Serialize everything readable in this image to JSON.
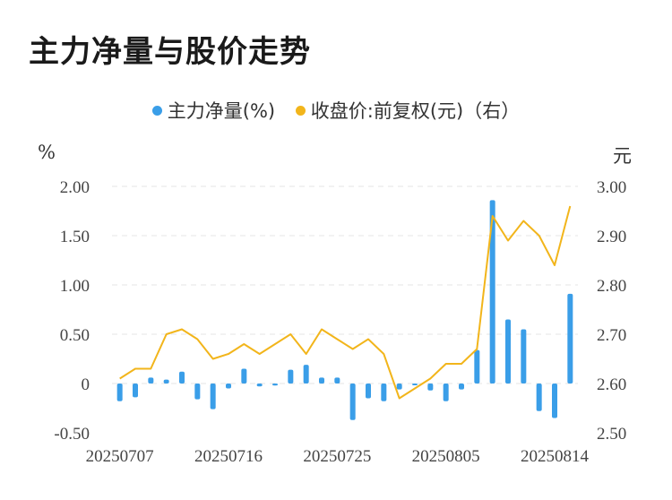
{
  "title": "主力净量与股价走势",
  "legend": {
    "main_net": "主力净量(%)",
    "close_price": "收盘价:前复权(元)（右）"
  },
  "colors": {
    "main_net": "#3a9ee8",
    "close_price": "#f2b51b",
    "grid": "#e4e4e4"
  },
  "chart_data": {
    "type": "bar+line",
    "left_unit": "%",
    "right_unit": "元",
    "left_ticks": [
      "2.00",
      "1.50",
      "1.00",
      "0.50",
      "0",
      "-0.50"
    ],
    "right_ticks": [
      "3.00",
      "2.90",
      "2.80",
      "2.70",
      "2.60",
      "2.50"
    ],
    "left_range": [
      -0.5,
      2.0
    ],
    "right_range": [
      2.5,
      3.0
    ],
    "x_ticks": [
      "20250707",
      "20250716",
      "20250725",
      "20250805",
      "20250814"
    ],
    "x_tick_index": [
      0,
      7,
      14,
      21,
      28
    ],
    "bar_values": [
      -0.18,
      -0.14,
      0.06,
      0.04,
      0.12,
      -0.16,
      -0.26,
      -0.05,
      0.15,
      -0.03,
      -0.02,
      0.14,
      0.19,
      0.06,
      0.06,
      -0.37,
      -0.15,
      -0.18,
      -0.06,
      -0.01,
      -0.07,
      -0.18,
      -0.06,
      0.34,
      1.86,
      0.65,
      0.55,
      -0.28,
      -0.35,
      0.91
    ],
    "line_values": [
      2.61,
      2.63,
      2.63,
      2.7,
      2.71,
      2.69,
      2.65,
      2.66,
      2.68,
      2.66,
      2.68,
      2.7,
      2.66,
      2.71,
      2.69,
      2.67,
      2.69,
      2.66,
      2.57,
      2.59,
      2.61,
      2.64,
      2.64,
      2.67,
      2.94,
      2.89,
      2.93,
      2.9,
      2.84,
      2.96
    ],
    "grid": true,
    "legend_position": "top"
  }
}
